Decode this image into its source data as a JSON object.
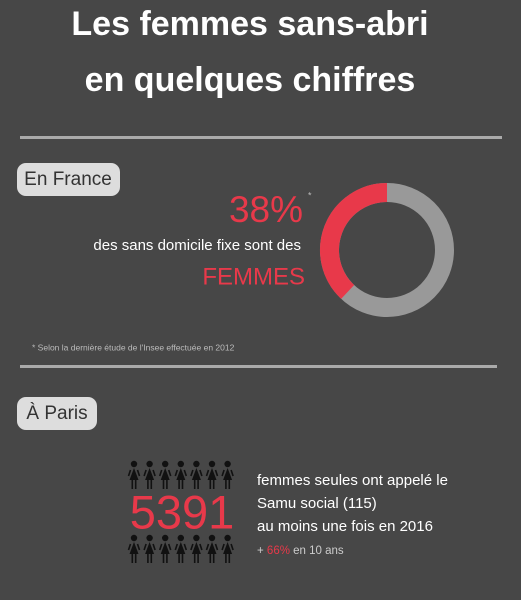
{
  "header": {
    "title_lines": [
      "Les femmes sans-abri",
      "en quelques chiffres"
    ]
  },
  "france": {
    "badge": "En France",
    "share": {
      "value": 38,
      "label": "38%"
    },
    "asterisk": "*",
    "text": "des sans domicile fixe sont des",
    "emphasis": "FEMMES",
    "footnote": "* Selon la dernière étude de l'Insee effectuée en 2012"
  },
  "paris": {
    "badge": "À Paris",
    "count": "5391",
    "lines": [
      "femmes seules ont appelé le",
      "Samu social (115)",
      "au moins une fois en 2016"
    ],
    "growth": {
      "prefix": "+",
      "value": "66%",
      "suffix": "en 10 ans"
    }
  }
}
